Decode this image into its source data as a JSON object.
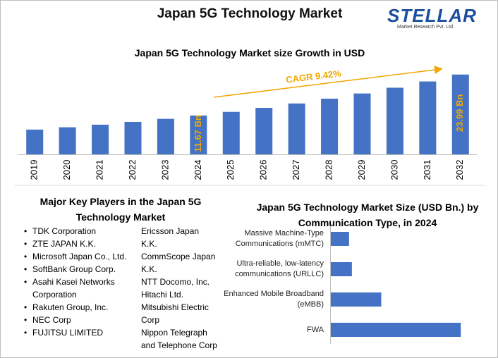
{
  "title": "Japan 5G Technology Market",
  "logo": {
    "text": "STELLAR",
    "tagline": "Market Research Pvt. Ltd."
  },
  "chart_data": [
    {
      "type": "bar",
      "title": "Japan 5G Technology Market size Growth in USD",
      "categories": [
        "2019",
        "2020",
        "2021",
        "2022",
        "2023",
        "2024",
        "2025",
        "2026",
        "2027",
        "2028",
        "2029",
        "2030",
        "2031",
        "2032"
      ],
      "values": [
        7.44,
        8.14,
        8.91,
        9.75,
        10.67,
        11.67,
        12.77,
        13.97,
        15.29,
        16.73,
        18.3,
        20.03,
        21.91,
        23.99
      ],
      "value_labels": [
        null,
        null,
        null,
        null,
        null,
        "11.67 Bn",
        null,
        null,
        null,
        null,
        null,
        null,
        null,
        "23.99 Bn"
      ],
      "annotation": "CAGR 9.42%",
      "color": "#4472c4",
      "label_color": "#f0a800",
      "ylim": [
        0,
        25
      ]
    },
    {
      "type": "barh",
      "title": "Japan 5G Technology Market Size (USD Bn.) by Communication Type, in 2024",
      "categories": [
        "Massive Machine-Type Communications (mMTC)",
        "Ultra-reliable, low-latency communications (URLLC)",
        "Enhanced Mobile Broadband (eMBB)",
        "FWA"
      ],
      "values": [
        0.97,
        1.12,
        2.68,
        6.91
      ],
      "color": "#4472c4",
      "xlim": [
        0,
        7.5
      ]
    }
  ],
  "key_players": {
    "title": "Major Key Players in the Japan 5G Technology Market",
    "column1": [
      "TDK Corporation",
      "ZTE JAPAN K.K.",
      "Microsoft Japan Co., Ltd.",
      "SoftBank Group Corp.",
      "Asahi Kasei Networks Corporation",
      "Rakuten Group, Inc.",
      "NEC Corp",
      "FUJITSU LIMITED"
    ],
    "column2": [
      "Ericsson Japan K.K.",
      "CommScope Japan K.K.",
      "NTT Docomo, Inc.",
      "Hitachi Ltd.",
      "Mitsubishi Electric Corp",
      "Nippon Telegraph and Telephone Corp"
    ]
  }
}
